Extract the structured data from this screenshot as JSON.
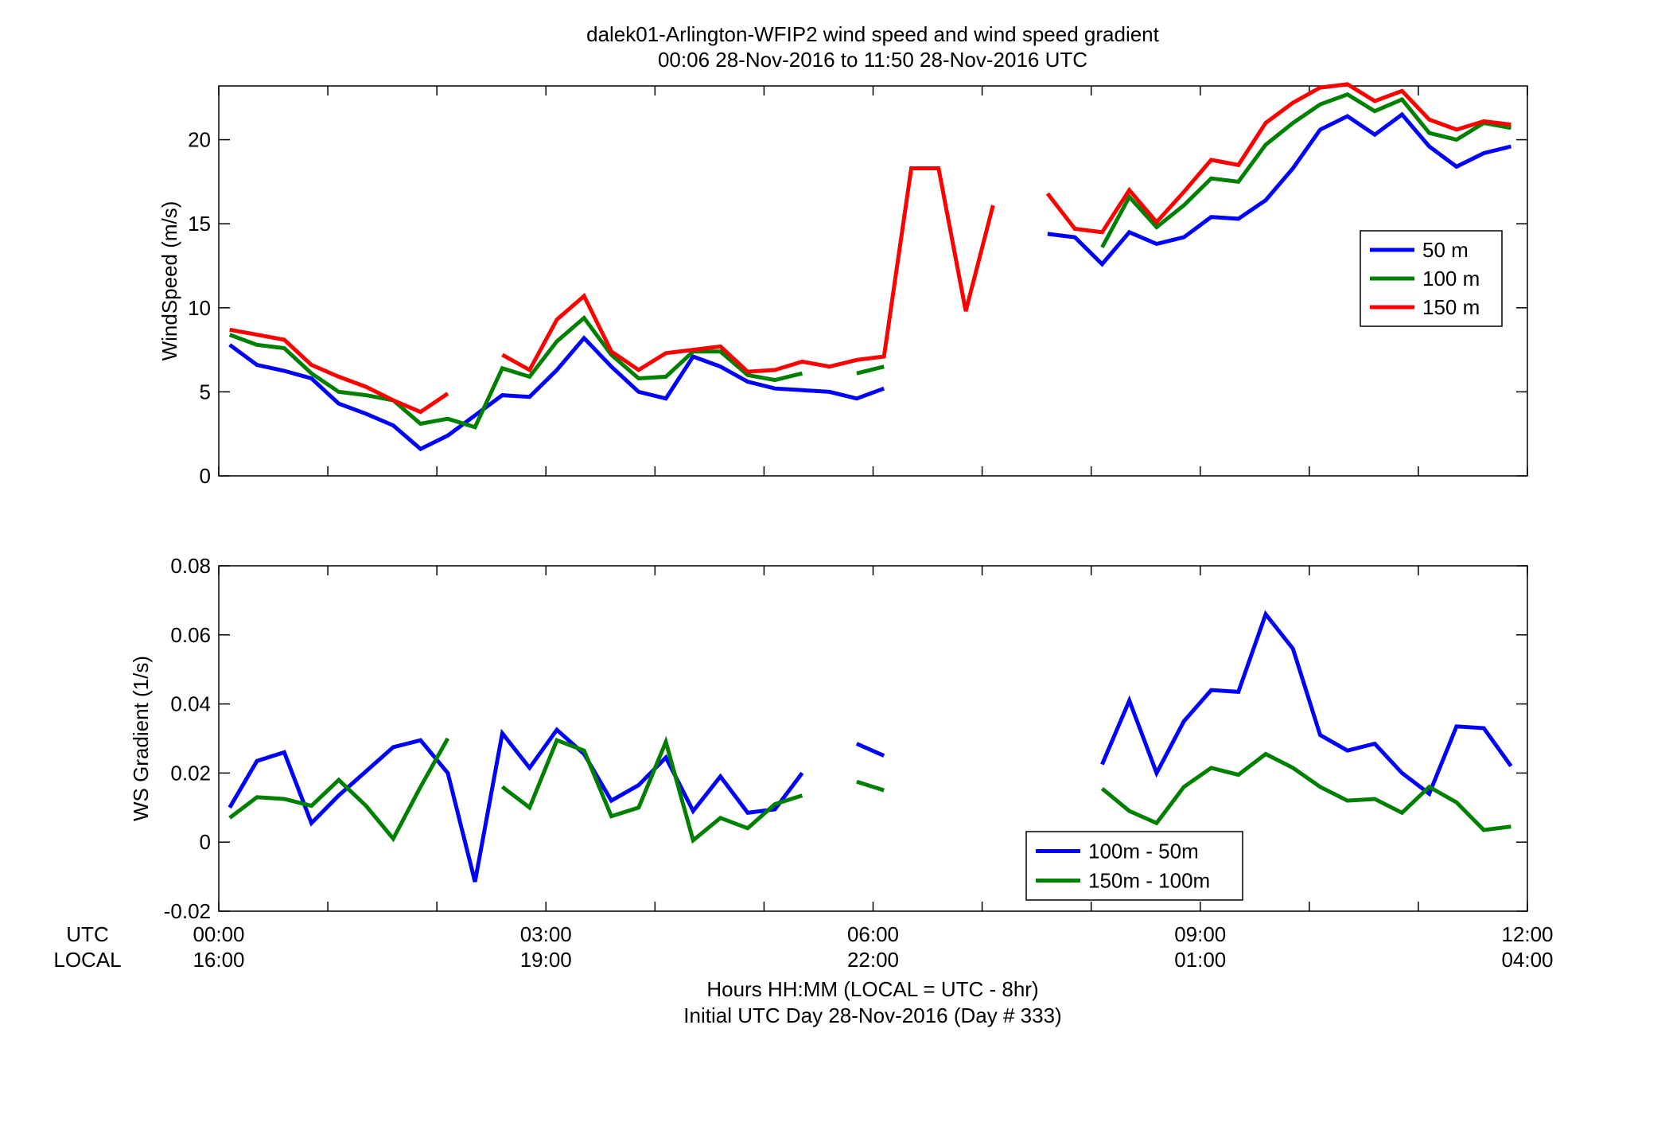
{
  "figure": {
    "title_line1": "dalek01-Arlington-WFIP2  wind speed and wind speed gradient",
    "title_line2": "00:06 28-Nov-2016 to 11:50 28-Nov-2016  UTC",
    "xlabel_line1": "Hours HH:MM  (LOCAL = UTC - 8hr)",
    "xlabel_line2": "Initial UTC Day 28-Nov-2016 (Day # 333)",
    "row_label_utc": "UTC",
    "row_label_local": "LOCAL",
    "utc_ticks": [
      "00:00",
      "03:00",
      "06:00",
      "09:00",
      "12:00"
    ],
    "local_ticks": [
      "16:00",
      "19:00",
      "22:00",
      "01:00",
      "04:00"
    ]
  },
  "chart_data": [
    {
      "type": "line",
      "panel": "top",
      "ylabel": "WindSpeed (m/s)",
      "xlim": [
        0,
        12
      ],
      "ylim": [
        0,
        23.2
      ],
      "yticks": [
        0,
        5,
        10,
        15,
        20
      ],
      "xticks_hours": [
        0,
        1,
        2,
        3,
        4,
        5,
        6,
        7,
        8,
        9,
        10,
        11,
        12
      ],
      "legend_position": "right-middle",
      "series": [
        {
          "name": "50 m",
          "color": "#0000ff",
          "points": [
            [
              0.1,
              7.8
            ],
            [
              0.35,
              6.6
            ],
            [
              0.6,
              6.25
            ],
            [
              0.85,
              5.8
            ],
            [
              1.1,
              4.3
            ],
            [
              1.35,
              3.7
            ],
            [
              1.6,
              3.0
            ],
            [
              1.85,
              1.6
            ],
            [
              2.1,
              2.4
            ],
            [
              2.35,
              3.6
            ],
            [
              2.6,
              4.8
            ],
            [
              2.85,
              4.7
            ],
            [
              3.1,
              6.3
            ],
            [
              3.35,
              8.2
            ],
            [
              3.6,
              6.5
            ],
            [
              3.85,
              5.0
            ],
            [
              4.1,
              4.6
            ],
            [
              4.35,
              7.1
            ],
            [
              4.6,
              6.5
            ],
            [
              4.85,
              5.6
            ],
            [
              5.1,
              5.2
            ],
            [
              5.35,
              5.1
            ],
            [
              5.6,
              5.0
            ],
            [
              5.85,
              4.6
            ],
            [
              6.1,
              5.2
            ],
            null,
            [
              7.6,
              14.4
            ],
            [
              7.85,
              14.2
            ],
            [
              8.1,
              12.6
            ],
            [
              8.35,
              14.5
            ],
            [
              8.6,
              13.8
            ],
            [
              8.85,
              14.2
            ],
            [
              9.1,
              15.4
            ],
            [
              9.35,
              15.3
            ],
            [
              9.6,
              16.4
            ],
            [
              9.85,
              18.3
            ],
            [
              10.1,
              20.6
            ],
            [
              10.35,
              21.4
            ],
            [
              10.6,
              20.3
            ],
            [
              10.85,
              21.5
            ],
            [
              11.1,
              19.6
            ],
            [
              11.35,
              18.4
            ],
            [
              11.6,
              19.2
            ],
            [
              11.85,
              19.6
            ]
          ]
        },
        {
          "name": "100 m",
          "color": "#008000",
          "points": [
            [
              0.1,
              8.4
            ],
            [
              0.35,
              7.8
            ],
            [
              0.6,
              7.6
            ],
            [
              0.85,
              6.1
            ],
            [
              1.1,
              5.0
            ],
            [
              1.35,
              4.8
            ],
            [
              1.6,
              4.5
            ],
            [
              1.85,
              3.1
            ],
            [
              2.1,
              3.4
            ],
            [
              2.35,
              2.9
            ],
            [
              2.6,
              6.4
            ],
            [
              2.85,
              5.9
            ],
            [
              3.1,
              8.0
            ],
            [
              3.35,
              9.4
            ],
            [
              3.6,
              7.2
            ],
            [
              3.85,
              5.8
            ],
            [
              4.1,
              5.9
            ],
            [
              4.35,
              7.4
            ],
            [
              4.6,
              7.4
            ],
            [
              4.85,
              6.0
            ],
            [
              5.1,
              5.7
            ],
            [
              5.35,
              6.1
            ],
            null,
            [
              5.85,
              6.1
            ],
            [
              6.1,
              6.5
            ],
            null,
            [
              8.1,
              13.6
            ],
            [
              8.35,
              16.6
            ],
            [
              8.6,
              14.8
            ],
            [
              8.85,
              16.1
            ],
            [
              9.1,
              17.7
            ],
            [
              9.35,
              17.5
            ],
            [
              9.6,
              19.7
            ],
            [
              9.85,
              21.0
            ],
            [
              10.1,
              22.1
            ],
            [
              10.35,
              22.7
            ],
            [
              10.6,
              21.7
            ],
            [
              10.85,
              22.4
            ],
            [
              11.1,
              20.4
            ],
            [
              11.35,
              20.0
            ],
            [
              11.6,
              21.0
            ],
            [
              11.85,
              20.7
            ]
          ]
        },
        {
          "name": "150 m",
          "color": "#ff0000",
          "points": [
            [
              0.1,
              8.7
            ],
            [
              0.35,
              8.4
            ],
            [
              0.6,
              8.1
            ],
            [
              0.85,
              6.6
            ],
            [
              1.1,
              5.9
            ],
            [
              1.35,
              5.3
            ],
            [
              1.6,
              4.5
            ],
            [
              1.85,
              3.8
            ],
            [
              2.1,
              4.9
            ],
            null,
            [
              2.6,
              7.2
            ],
            [
              2.85,
              6.3
            ],
            [
              3.1,
              9.3
            ],
            [
              3.35,
              10.7
            ],
            [
              3.6,
              7.4
            ],
            [
              3.85,
              6.3
            ],
            [
              4.1,
              7.3
            ],
            [
              4.35,
              7.5
            ],
            [
              4.6,
              7.7
            ],
            [
              4.85,
              6.2
            ],
            [
              5.1,
              6.3
            ],
            [
              5.35,
              6.8
            ],
            [
              5.6,
              6.5
            ],
            [
              5.85,
              6.9
            ],
            [
              6.1,
              7.1
            ],
            [
              6.35,
              18.3
            ],
            [
              6.6,
              18.3
            ],
            [
              6.85,
              9.8
            ],
            [
              7.1,
              16.1
            ],
            null,
            [
              7.6,
              16.8
            ],
            [
              7.85,
              14.7
            ],
            [
              8.1,
              14.5
            ],
            [
              8.35,
              17.0
            ],
            [
              8.6,
              15.1
            ],
            [
              8.85,
              16.9
            ],
            [
              9.1,
              18.8
            ],
            [
              9.35,
              18.5
            ],
            [
              9.6,
              21.0
            ],
            [
              9.85,
              22.2
            ],
            [
              10.1,
              23.1
            ],
            [
              10.35,
              23.3
            ],
            [
              10.6,
              22.3
            ],
            [
              10.85,
              22.9
            ],
            [
              11.1,
              21.2
            ],
            [
              11.35,
              20.6
            ],
            [
              11.6,
              21.1
            ],
            [
              11.85,
              20.9
            ]
          ]
        }
      ]
    },
    {
      "type": "line",
      "panel": "bottom",
      "ylabel": "WS Gradient (1/s)",
      "xlim": [
        0,
        12
      ],
      "ylim": [
        -0.02,
        0.08
      ],
      "yticks": [
        -0.02,
        0,
        0.02,
        0.04,
        0.06,
        0.08
      ],
      "ytick_labels": [
        "-0.02",
        "0",
        "0.02",
        "0.04",
        "0.06",
        "0.08"
      ],
      "xticks_hours": [
        0,
        1,
        2,
        3,
        4,
        5,
        6,
        7,
        8,
        9,
        10,
        11,
        12
      ],
      "legend_position": "bottom-middle",
      "series": [
        {
          "name": "100m - 50m",
          "color": "#0000ff",
          "points": [
            [
              0.1,
              0.01
            ],
            [
              0.35,
              0.0235
            ],
            [
              0.6,
              0.026
            ],
            [
              0.85,
              0.0055
            ],
            [
              1.1,
              0.0135
            ],
            [
              1.35,
              0.0205
            ],
            [
              1.6,
              0.0275
            ],
            [
              1.85,
              0.0295
            ],
            [
              2.1,
              0.02
            ],
            [
              2.35,
              -0.0115
            ],
            [
              2.6,
              0.0315
            ],
            [
              2.85,
              0.0215
            ],
            [
              3.1,
              0.0325
            ],
            [
              3.35,
              0.0255
            ],
            [
              3.6,
              0.012
            ],
            [
              3.85,
              0.0165
            ],
            [
              4.1,
              0.0245
            ],
            [
              4.35,
              0.009
            ],
            [
              4.6,
              0.019
            ],
            [
              4.85,
              0.0085
            ],
            [
              5.1,
              0.0095
            ],
            [
              5.35,
              0.02
            ],
            null,
            [
              5.85,
              0.0285
            ],
            [
              6.1,
              0.025
            ],
            null,
            [
              8.1,
              0.0225
            ],
            [
              8.35,
              0.041
            ],
            [
              8.6,
              0.02
            ],
            [
              8.85,
              0.035
            ],
            [
              9.1,
              0.044
            ],
            [
              9.35,
              0.0435
            ],
            [
              9.6,
              0.066
            ],
            [
              9.85,
              0.056
            ],
            [
              10.1,
              0.031
            ],
            [
              10.35,
              0.0265
            ],
            [
              10.6,
              0.0285
            ],
            [
              10.85,
              0.02
            ],
            [
              11.1,
              0.014
            ],
            [
              11.35,
              0.0335
            ],
            [
              11.6,
              0.033
            ],
            [
              11.85,
              0.022
            ]
          ]
        },
        {
          "name": "150m - 100m",
          "color": "#008000",
          "points": [
            [
              0.1,
              0.007
            ],
            [
              0.35,
              0.013
            ],
            [
              0.6,
              0.0125
            ],
            [
              0.85,
              0.0105
            ],
            [
              1.1,
              0.018
            ],
            [
              1.35,
              0.0105
            ],
            [
              1.6,
              0.001
            ],
            [
              1.85,
              0.016
            ],
            [
              2.1,
              0.03
            ],
            null,
            [
              2.6,
              0.016
            ],
            [
              2.85,
              0.01
            ],
            [
              3.1,
              0.0295
            ],
            [
              3.35,
              0.0265
            ],
            [
              3.6,
              0.0075
            ],
            [
              3.85,
              0.01
            ],
            [
              4.1,
              0.029
            ],
            [
              4.35,
              0.0005
            ],
            [
              4.6,
              0.007
            ],
            [
              4.85,
              0.004
            ],
            [
              5.1,
              0.011
            ],
            [
              5.35,
              0.0135
            ],
            null,
            [
              5.85,
              0.0175
            ],
            [
              6.1,
              0.015
            ],
            null,
            [
              8.1,
              0.0155
            ],
            [
              8.35,
              0.009
            ],
            [
              8.6,
              0.0055
            ],
            [
              8.85,
              0.016
            ],
            [
              9.1,
              0.0215
            ],
            [
              9.35,
              0.0195
            ],
            [
              9.6,
              0.0255
            ],
            [
              9.85,
              0.0215
            ],
            [
              10.1,
              0.016
            ],
            [
              10.35,
              0.012
            ],
            [
              10.6,
              0.0125
            ],
            [
              10.85,
              0.0085
            ],
            [
              11.1,
              0.016
            ],
            [
              11.35,
              0.0115
            ],
            [
              11.6,
              0.0035
            ],
            [
              11.85,
              0.0045
            ]
          ]
        }
      ]
    }
  ]
}
